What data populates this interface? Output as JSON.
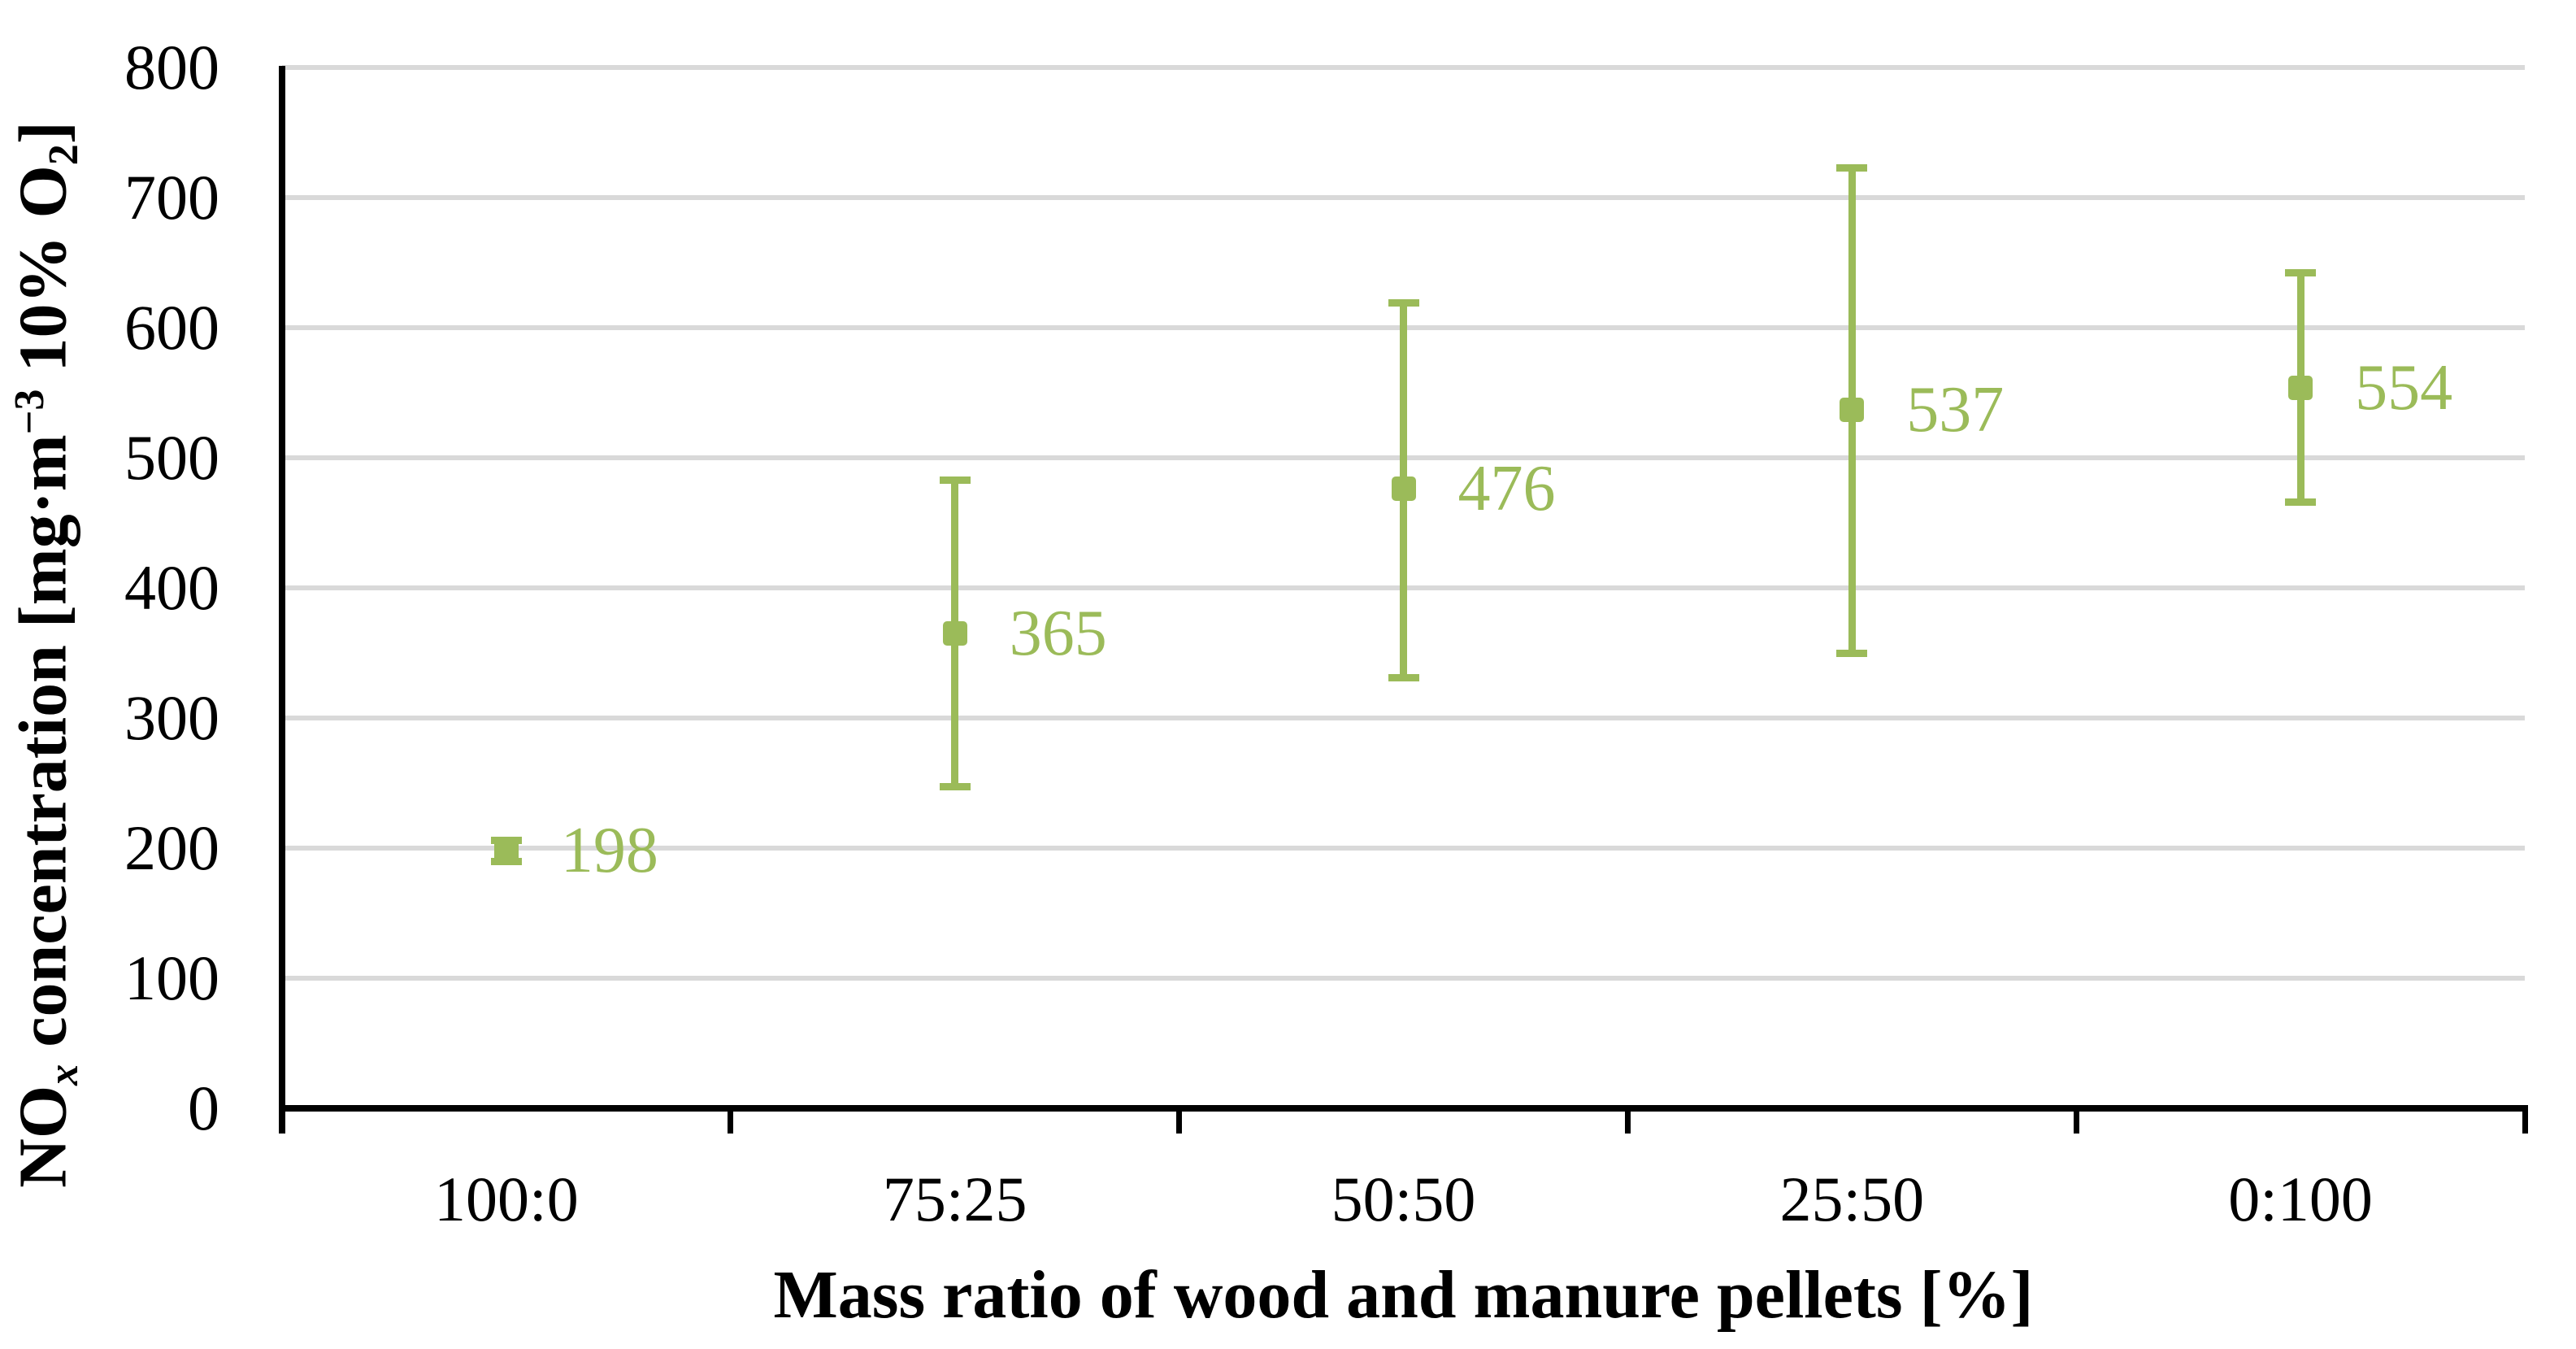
{
  "chart_data": {
    "type": "scatter",
    "title": "",
    "xlabel": "Mass ratio of wood and manure pellets [%]",
    "ylabel": "NOx concentration [mg·m−3 10% O2]",
    "ylabel_parts": [
      {
        "t": "NO",
        "style": "normal"
      },
      {
        "t": "x",
        "style": "sub-italic"
      },
      {
        "t": " concentration [mg·m",
        "style": "normal"
      },
      {
        "t": "−3",
        "style": "sup"
      },
      {
        "t": " 10% O",
        "style": "normal"
      },
      {
        "t": "2",
        "style": "sub"
      },
      {
        "t": "]",
        "style": "normal"
      }
    ],
    "categories": [
      "100:0",
      "75:25",
      "50:50",
      "25:50",
      "0:100"
    ],
    "series": [
      {
        "name": "NOx concentration",
        "values": [
          198,
          365,
          476,
          537,
          554
        ],
        "data_labels": [
          "198",
          "365",
          "476",
          "537",
          "554"
        ],
        "error_low": [
          190,
          247,
          331,
          350,
          466
        ],
        "error_high": [
          206,
          483,
          619,
          723,
          642
        ]
      }
    ],
    "ylim": [
      0,
      800
    ],
    "yticks": [
      0,
      100,
      200,
      300,
      400,
      500,
      600,
      700,
      800
    ],
    "grid": "horizontal",
    "legend": "none",
    "marker": "square",
    "colors": {
      "series_green": "#9bbb59",
      "gridline_gray": "#d9d9d9",
      "axis_black": "#000000",
      "background": "#ffffff"
    }
  }
}
